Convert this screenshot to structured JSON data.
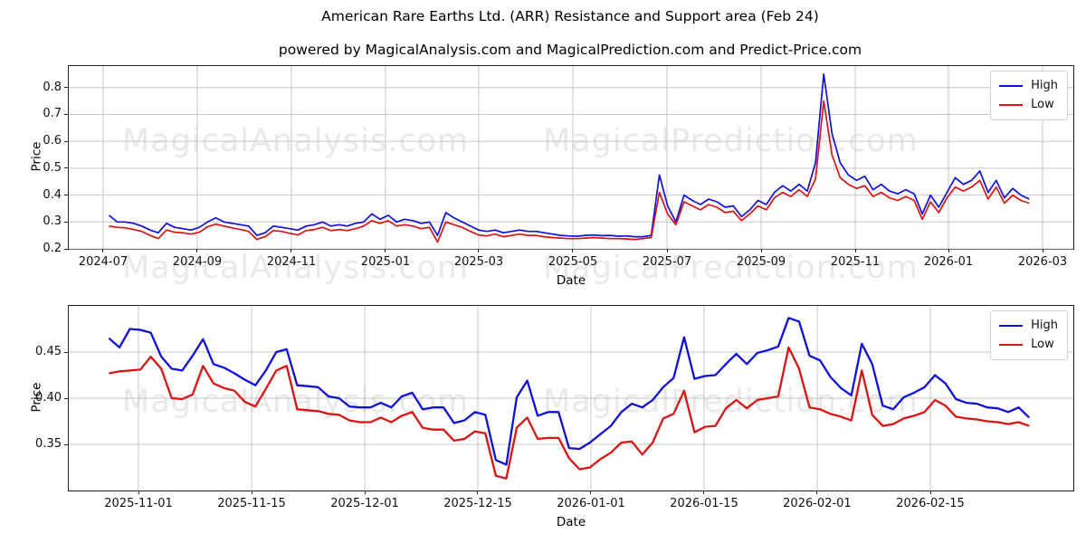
{
  "header": {
    "title": "American Rare Earths Ltd. (ARR) Resistance and Support area (Feb 24)",
    "subtitle": "powered by MagicalAnalysis.com and MagicalPrediction.com and Predict-Price.com"
  },
  "colors": {
    "high": "#1010d6",
    "low": "#d81414",
    "grid": "#c6c6c6",
    "spine": "#222222",
    "watermark": "#e9e9e9"
  },
  "watermarks": {
    "analysis": "MagicalAnalysis.com",
    "prediction": "MagicalPrediction.com"
  },
  "chart_data": [
    {
      "type": "line",
      "xlabel": "Date",
      "ylabel": "Price",
      "grid": true,
      "legend_position": "upper right",
      "x_range": [
        "2024-06-24",
        "2026-02-20"
      ],
      "ylim": [
        0.2,
        0.88
      ],
      "yticks": {
        "values": [
          0.2,
          0.3,
          0.4,
          0.5,
          0.6,
          0.7,
          0.8
        ],
        "labels": [
          "0.2",
          "0.3",
          "0.4",
          "0.5",
          "0.6",
          "0.7",
          "0.8"
        ]
      },
      "xticks": {
        "labels": [
          "2024-07",
          "2024-09",
          "2024-11",
          "2025-01",
          "2025-03",
          "2025-05",
          "2025-07",
          "2025-09",
          "2025-11",
          "2026-01",
          "2026-03"
        ],
        "fracs": [
          0.0342,
          0.1279,
          0.2216,
          0.3153,
          0.4081,
          0.5018,
          0.5955,
          0.6892,
          0.7829,
          0.8757,
          0.9694
        ]
      },
      "series": [
        {
          "name": "High",
          "color": "#1010d6",
          "values": [
            0.325,
            0.3,
            0.3,
            0.295,
            0.285,
            0.27,
            0.26,
            0.295,
            0.28,
            0.275,
            0.27,
            0.28,
            0.3,
            0.315,
            0.3,
            0.295,
            0.29,
            0.285,
            0.25,
            0.26,
            0.285,
            0.28,
            0.275,
            0.27,
            0.285,
            0.29,
            0.3,
            0.285,
            0.29,
            0.285,
            0.295,
            0.3,
            0.33,
            0.31,
            0.325,
            0.3,
            0.31,
            0.305,
            0.295,
            0.3,
            0.25,
            0.335,
            0.315,
            0.3,
            0.285,
            0.27,
            0.265,
            0.27,
            0.26,
            0.265,
            0.27,
            0.265,
            0.265,
            0.26,
            0.255,
            0.25,
            0.248,
            0.247,
            0.25,
            0.252,
            0.249,
            0.25,
            0.247,
            0.248,
            0.245,
            0.245,
            0.25,
            0.475,
            0.36,
            0.3,
            0.4,
            0.38,
            0.365,
            0.385,
            0.375,
            0.355,
            0.36,
            0.32,
            0.345,
            0.38,
            0.365,
            0.41,
            0.435,
            0.415,
            0.44,
            0.415,
            0.52,
            0.85,
            0.63,
            0.52,
            0.475,
            0.455,
            0.47,
            0.42,
            0.44,
            0.415,
            0.405,
            0.42,
            0.405,
            0.33,
            0.4,
            0.355,
            0.41,
            0.465,
            0.44,
            0.455,
            0.49,
            0.41,
            0.455,
            0.39,
            0.425,
            0.4,
            0.385
          ]
        },
        {
          "name": "Low",
          "color": "#d81414",
          "values": [
            0.285,
            0.28,
            0.278,
            0.272,
            0.265,
            0.25,
            0.238,
            0.27,
            0.262,
            0.26,
            0.255,
            0.262,
            0.282,
            0.292,
            0.285,
            0.278,
            0.272,
            0.265,
            0.235,
            0.245,
            0.268,
            0.265,
            0.258,
            0.252,
            0.268,
            0.272,
            0.28,
            0.268,
            0.272,
            0.268,
            0.275,
            0.285,
            0.305,
            0.295,
            0.305,
            0.285,
            0.29,
            0.285,
            0.275,
            0.28,
            0.225,
            0.3,
            0.29,
            0.28,
            0.265,
            0.252,
            0.248,
            0.255,
            0.245,
            0.25,
            0.255,
            0.25,
            0.25,
            0.245,
            0.242,
            0.24,
            0.238,
            0.238,
            0.24,
            0.242,
            0.24,
            0.238,
            0.238,
            0.237,
            0.235,
            0.238,
            0.242,
            0.41,
            0.33,
            0.29,
            0.375,
            0.36,
            0.345,
            0.365,
            0.355,
            0.335,
            0.34,
            0.305,
            0.33,
            0.36,
            0.345,
            0.39,
            0.41,
            0.395,
            0.42,
            0.395,
            0.46,
            0.75,
            0.55,
            0.465,
            0.44,
            0.425,
            0.435,
            0.395,
            0.41,
            0.39,
            0.38,
            0.395,
            0.38,
            0.31,
            0.375,
            0.335,
            0.39,
            0.43,
            0.415,
            0.43,
            0.455,
            0.385,
            0.43,
            0.37,
            0.4,
            0.38,
            0.37
          ]
        }
      ]
    },
    {
      "type": "line",
      "xlabel": "Date",
      "ylabel": "Price",
      "grid": true,
      "legend_position": "upper right",
      "x_range": [
        "2025-10-28",
        "2026-02-18"
      ],
      "ylim": [
        0.3,
        0.5
      ],
      "yticks": {
        "values": [
          0.35,
          0.4,
          0.45
        ],
        "labels": [
          "0.35",
          "0.40",
          "0.45"
        ]
      },
      "xticks": {
        "labels": [
          "2025-11-01",
          "2025-11-15",
          "2025-12-01",
          "2025-12-15",
          "2026-01-01",
          "2026-01-15",
          "2026-02-01",
          "2026-02-15"
        ],
        "fracs": [
          0.0694,
          0.182,
          0.2946,
          0.4072,
          0.5198,
          0.6324,
          0.745,
          0.8577
        ]
      },
      "series": [
        {
          "name": "High",
          "color": "#1010d6",
          "values": [
            0.465,
            0.455,
            0.475,
            0.474,
            0.471,
            0.445,
            0.432,
            0.43,
            0.446,
            0.464,
            0.437,
            0.433,
            0.427,
            0.42,
            0.414,
            0.43,
            0.45,
            0.453,
            0.414,
            0.413,
            0.412,
            0.402,
            0.4,
            0.391,
            0.39,
            0.39,
            0.395,
            0.39,
            0.402,
            0.406,
            0.388,
            0.39,
            0.39,
            0.373,
            0.376,
            0.385,
            0.382,
            0.333,
            0.328,
            0.401,
            0.419,
            0.381,
            0.385,
            0.385,
            0.346,
            0.345,
            0.352,
            0.361,
            0.37,
            0.385,
            0.394,
            0.39,
            0.398,
            0.412,
            0.422,
            0.466,
            0.421,
            0.424,
            0.425,
            0.437,
            0.448,
            0.437,
            0.449,
            0.452,
            0.456,
            0.487,
            0.483,
            0.446,
            0.441,
            0.423,
            0.411,
            0.403,
            0.459,
            0.437,
            0.392,
            0.388,
            0.401,
            0.406,
            0.412,
            0.425,
            0.416,
            0.399,
            0.395,
            0.394,
            0.39,
            0.389,
            0.385,
            0.39,
            0.379
          ]
        },
        {
          "name": "Low",
          "color": "#d81414",
          "values": [
            0.427,
            0.429,
            0.43,
            0.431,
            0.445,
            0.432,
            0.4,
            0.399,
            0.404,
            0.435,
            0.416,
            0.411,
            0.408,
            0.396,
            0.391,
            0.41,
            0.43,
            0.435,
            0.388,
            0.387,
            0.386,
            0.383,
            0.382,
            0.376,
            0.374,
            0.374,
            0.379,
            0.374,
            0.381,
            0.385,
            0.368,
            0.366,
            0.366,
            0.354,
            0.356,
            0.364,
            0.362,
            0.316,
            0.313,
            0.368,
            0.379,
            0.356,
            0.357,
            0.357,
            0.335,
            0.323,
            0.325,
            0.334,
            0.341,
            0.352,
            0.353,
            0.339,
            0.352,
            0.378,
            0.383,
            0.408,
            0.363,
            0.369,
            0.37,
            0.389,
            0.398,
            0.389,
            0.398,
            0.4,
            0.402,
            0.455,
            0.432,
            0.39,
            0.388,
            0.383,
            0.38,
            0.376,
            0.43,
            0.382,
            0.37,
            0.372,
            0.378,
            0.381,
            0.385,
            0.398,
            0.392,
            0.38,
            0.378,
            0.377,
            0.375,
            0.374,
            0.372,
            0.374,
            0.37
          ]
        }
      ]
    }
  ]
}
